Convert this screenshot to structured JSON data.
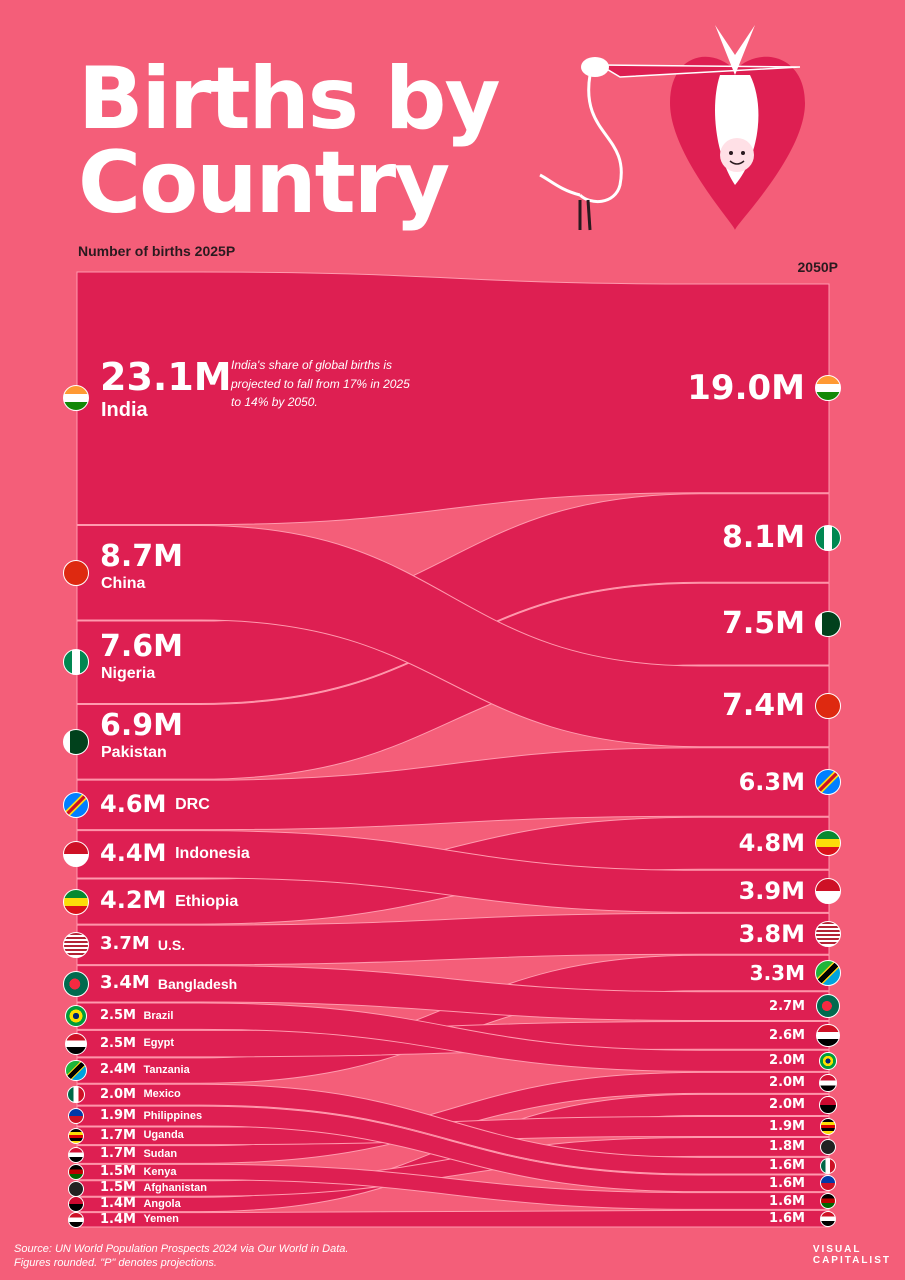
{
  "title_line1": "Births by",
  "title_line2": "Country",
  "chart_data": {
    "type": "bump",
    "title": "Births by Country",
    "left_label": "Number of births 2025P",
    "right_label": "2050P",
    "unit_suffix": "M",
    "series": [
      {
        "name": "India",
        "v2025": 23.1,
        "v2050": 19.0,
        "flag": "india-flag"
      },
      {
        "name": "China",
        "v2025": 8.7,
        "v2050": 7.4,
        "flag": "china-flag"
      },
      {
        "name": "Nigeria",
        "v2025": 7.6,
        "v2050": 8.1,
        "flag": "nigeria-flag"
      },
      {
        "name": "Pakistan",
        "v2025": 6.9,
        "v2050": 7.5,
        "flag": "pakistan-flag"
      },
      {
        "name": "DRC",
        "v2025": 4.6,
        "v2050": 6.3,
        "flag": "drc-flag"
      },
      {
        "name": "Indonesia",
        "v2025": 4.4,
        "v2050": 3.9,
        "flag": "indonesia-flag"
      },
      {
        "name": "Ethiopia",
        "v2025": 4.2,
        "v2050": 4.8,
        "flag": "ethiopia-flag"
      },
      {
        "name": "U.S.",
        "v2025": 3.7,
        "v2050": 3.8,
        "flag": "us-flag"
      },
      {
        "name": "Bangladesh",
        "v2025": 3.4,
        "v2050": 2.7,
        "flag": "bangladesh-flag"
      },
      {
        "name": "Brazil",
        "v2025": 2.5,
        "v2050": 2.0,
        "flag": "brazil-flag"
      },
      {
        "name": "Egypt",
        "v2025": 2.5,
        "v2050": 2.6,
        "flag": "egypt-flag"
      },
      {
        "name": "Tanzania",
        "v2025": 2.4,
        "v2050": 3.3,
        "flag": "tanzania-flag"
      },
      {
        "name": "Mexico",
        "v2025": 2.0,
        "v2050": 1.6,
        "flag": "mexico-flag"
      },
      {
        "name": "Philippines",
        "v2025": 1.9,
        "v2050": 1.6,
        "flag": "philippines-flag"
      },
      {
        "name": "Uganda",
        "v2025": 1.7,
        "v2050": 1.9,
        "flag": "uganda-flag"
      },
      {
        "name": "Sudan",
        "v2025": 1.7,
        "v2050": 2.0,
        "flag": "sudan-flag"
      },
      {
        "name": "Kenya",
        "v2025": 1.5,
        "v2050": 1.6,
        "flag": "kenya-flag"
      },
      {
        "name": "Afghanistan",
        "v2025": 1.5,
        "v2050": 1.8,
        "flag": "afghanistan-flag"
      },
      {
        "name": "Angola",
        "v2025": 1.4,
        "v2050": 2.0,
        "flag": "angola-flag"
      },
      {
        "name": "Yemen",
        "v2025": 1.4,
        "v2050": 1.6,
        "flag": "yemen-flag"
      }
    ],
    "annotation": "India's share of global births is projected to fall from 17% in 2025 to 14% by 2050."
  },
  "footer": {
    "line1": "Source: UN World Population Prospects 2024 via Our World in Data.",
    "line2": "Figures rounded. \"P\" denotes projections."
  },
  "brand": {
    "line1": "VISUAL",
    "line2": "CAPITALIST"
  },
  "colors": {
    "background": "#f45e79",
    "ribbon": "#de1f52",
    "ribbon_edge": "#ff9aae",
    "text": "#ffffff"
  }
}
